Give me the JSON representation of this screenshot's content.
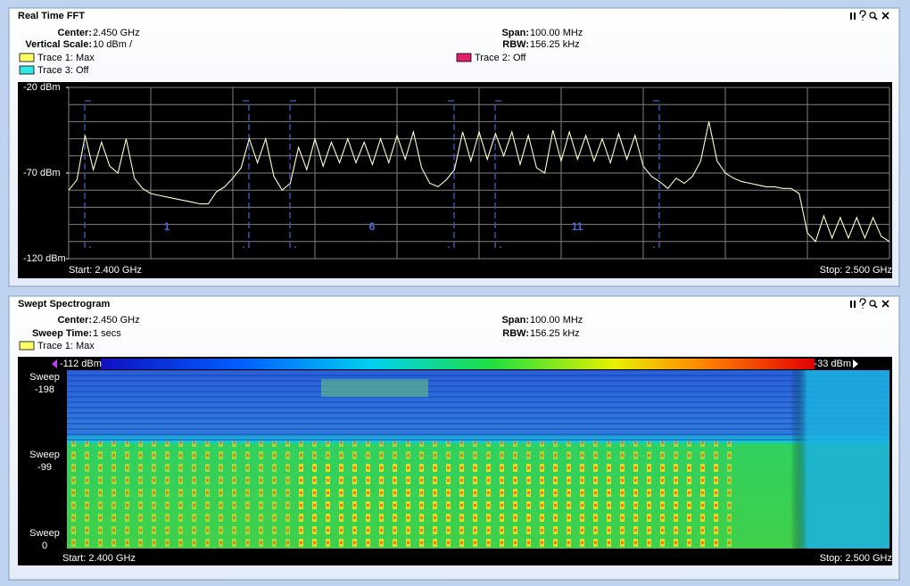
{
  "fft": {
    "title": "Real Time FFT",
    "info": {
      "center_label": "Center:",
      "center": "2.450 GHz",
      "vscale_label": "Vertical Scale:",
      "vscale": "10 dBm /",
      "span_label": "Span:",
      "span": "100.00 MHz",
      "rbw_label": "RBW:",
      "rbw": "156.25 kHz"
    },
    "traces": [
      {
        "label": "Trace 1: Max",
        "color": "#ffff66"
      },
      {
        "label": "Trace 3: Off",
        "color": "#33e6e6"
      },
      {
        "label": "Trace 2: Off",
        "color": "#e0206a"
      }
    ],
    "plot": {
      "ylim": [
        -120,
        -20
      ],
      "yticks": [
        {
          "value": -20,
          "label": "-20 dBm"
        },
        {
          "value": -70,
          "label": "-70 dBm"
        },
        {
          "value": -120,
          "label": "-120 dBm"
        }
      ],
      "xlim": [
        2.4,
        2.5
      ],
      "start_label": "Start: 2.400 GHz",
      "stop_label": "Stop: 2.500 GHz",
      "trace_color": "#ffffcc",
      "trace": [
        -80,
        -74,
        -48,
        -68,
        -52,
        -66,
        -70,
        -50,
        -73,
        -79,
        -82,
        -83,
        -84,
        -85,
        -86,
        -87,
        -88,
        -88,
        -81,
        -78,
        -73,
        -67,
        -50,
        -64,
        -50,
        -72,
        -80,
        -76,
        -55,
        -68,
        -50,
        -66,
        -52,
        -64,
        -50,
        -64,
        -52,
        -65,
        -50,
        -64,
        -48,
        -62,
        -46,
        -67,
        -76,
        -78,
        -74,
        -68,
        -46,
        -63,
        -46,
        -62,
        -47,
        -60,
        -46,
        -65,
        -48,
        -67,
        -70,
        -45,
        -63,
        -46,
        -62,
        -48,
        -63,
        -50,
        -64,
        -47,
        -62,
        -48,
        -66,
        -72,
        -75,
        -79,
        -73,
        -76,
        -72,
        -63,
        -40,
        -63,
        -70,
        -73,
        -75,
        -76,
        -77,
        -78,
        -78,
        -79,
        -79,
        -82,
        -105,
        -110,
        -95,
        -108,
        -96,
        -108,
        -96,
        -108,
        -96,
        -107,
        -110
      ],
      "channels": [
        "1",
        "6",
        "11"
      ]
    }
  },
  "spectrogram": {
    "title": "Swept Spectrogram",
    "info": {
      "center_label": "Center:",
      "center": "2.450 GHz",
      "sweep_label": "Sweep Time:",
      "sweep": "1 secs",
      "span_label": "Span:",
      "span": "100.00 MHz",
      "rbw_label": "RBW:",
      "rbw": "156.25 kHz"
    },
    "traces": [
      {
        "label": "Trace 1: Max",
        "color": "#ffff66"
      }
    ],
    "colorbar": {
      "min_label": "-112 dBm",
      "max_label": "-33 dBm"
    },
    "sweeps": [
      [
        "Sweep",
        "-198"
      ],
      [
        "Sweep",
        "-99"
      ],
      [
        "Sweep",
        "0"
      ]
    ],
    "start_label": "Start: 2.400 GHz",
    "stop_label": "Stop: 2.500 GHz"
  }
}
